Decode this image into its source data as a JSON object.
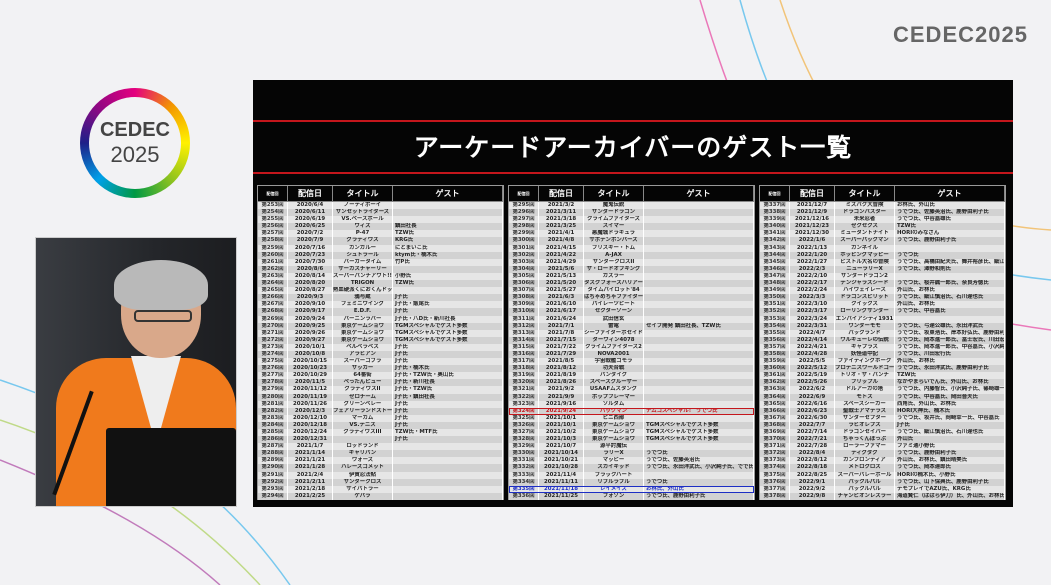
{
  "brand": {
    "logo_top_right": "CEDEC2025",
    "logo_left_line1": "CEDEC",
    "logo_left_line2": "2025"
  },
  "slide": {
    "title": "アーケードアーカイバーのゲスト一覧",
    "columns": [
      "配信回",
      "配信日",
      "タイトル",
      "ゲスト"
    ],
    "highlight_colors": {
      "red": "#c4161c",
      "blue": "#1d2ec4"
    },
    "tables": [
      {
        "rows": [
          [
            "第253回",
            "2020/6/4",
            "ノーティボーイ",
            ""
          ],
          [
            "第254回",
            "2020/6/11",
            "サンセットライダーズ",
            ""
          ],
          [
            "第255回",
            "2020/6/19",
            "VS.ベースボール",
            ""
          ],
          [
            "第256回",
            "2020/6/25",
            "ウィズ",
            "鎮田社長"
          ],
          [
            "第257回",
            "2020/7/2",
            "P-47",
            "TZW氏"
          ],
          [
            "第258回",
            "2020/7/9",
            "グラディウス",
            "KRG氏"
          ],
          [
            "第259回",
            "2020/7/16",
            "カンガルー",
            "にとまいこ氏"
          ],
          [
            "第260回",
            "2020/7/23",
            "シュトラール",
            "ktym氏・楠木氏"
          ],
          [
            "第261回",
            "2020/7/30",
            "バーガータイム",
            "竹P氏"
          ],
          [
            "第262回",
            "2020/8/6",
            "サーカスチャーリー",
            ""
          ],
          [
            "第263回",
            "2020/8/14",
            "スーパーパンチアウト!!",
            "小野氏"
          ],
          [
            "第264回",
            "2020/8/20",
            "TRIGON",
            "TZW氏"
          ],
          [
            "第265回",
            "2020/8/27",
            "熱血硬派くにおくんドッジボール部",
            ""
          ],
          [
            "第266回",
            "2020/9/3",
            "鴉与蔵",
            "J子氏"
          ],
          [
            "第267回",
            "2020/9/10",
            "フェミニウイング",
            "J子氏・飯尾氏"
          ],
          [
            "第268回",
            "2020/9/17",
            "E.D.F.",
            "J子氏"
          ],
          [
            "第269回",
            "2020/9/24",
            "バーニンラバー",
            "J子氏・八D氏・新川社長"
          ],
          [
            "第270回",
            "2020/9/25",
            "東京ゲームショウ",
            "TGMスペシャルでゲスト多数"
          ],
          [
            "第271回",
            "2020/9/26",
            "東京ゲームショウ",
            "TGMスペシャルでゲスト多数"
          ],
          [
            "第272回",
            "2020/9/27",
            "東京ゲームショウ",
            "TGMスペシャルでゲスト多数"
          ],
          [
            "第273回",
            "2020/10/1",
            "ベルベラベス",
            "J子氏"
          ],
          [
            "第274回",
            "2020/10/8",
            "アラビアン",
            "J子氏"
          ],
          [
            "第275回",
            "2020/10/15",
            "スーパーコブラ",
            "J子氏"
          ],
          [
            "第276回",
            "2020/10/23",
            "サッカー",
            "J子氏・楠木氏"
          ],
          [
            "第277回",
            "2020/10/29",
            "64番街",
            "J子氏・TZW氏・奥山氏"
          ],
          [
            "第278回",
            "2020/11/5",
            "ぺったんピュー",
            "J子氏・新川社長"
          ],
          [
            "第279回",
            "2020/11/12",
            "グラディウスII",
            "J子氏・TZW氏"
          ],
          [
            "第280回",
            "2020/11/19",
            "ゼロチーム",
            "J子氏・鎮田社長"
          ],
          [
            "第281回",
            "2020/11/26",
            "グリーンベレー",
            "J子氏"
          ],
          [
            "第282回",
            "2020/12/3",
            "フェアリーランドストーリー",
            "J子氏"
          ],
          [
            "第283回",
            "2020/12/10",
            "マーカム",
            "J子氏"
          ],
          [
            "第284回",
            "2020/12/18",
            "VS.テニス",
            "J子氏"
          ],
          [
            "第285回",
            "2020/12/24",
            "グラディウスIII",
            "TZW氏・MTF氏"
          ],
          [
            "第286回",
            "2020/12/31",
            "",
            "J子氏"
          ],
          [
            "第287回",
            "2021/1/7",
            "ロッドランド",
            ""
          ],
          [
            "第288回",
            "2021/1/14",
            "ギャリバン",
            ""
          ],
          [
            "第289回",
            "2021/1/21",
            "ウォーズ",
            ""
          ],
          [
            "第290回",
            "2021/1/28",
            "ハレーズコメット",
            ""
          ],
          [
            "第291回",
            "2021/2/4",
            "伊賀忍法帖",
            ""
          ],
          [
            "第292回",
            "2021/2/11",
            "サンダークロス",
            ""
          ],
          [
            "第293回",
            "2021/2/18",
            "サイバトラー",
            ""
          ],
          [
            "第294回",
            "2021/2/25",
            "ゲバラ",
            ""
          ]
        ]
      },
      {
        "rows": [
          [
            "第295回",
            "2021/3/2",
            "魔鬼伝説",
            ""
          ],
          [
            "第296回",
            "2021/3/11",
            "サンダードラゴン",
            ""
          ],
          [
            "第297回",
            "2021/3/18",
            "クライムファイターズ",
            ""
          ],
          [
            "第298回",
            "2021/3/25",
            "スイマー",
            ""
          ],
          [
            "第299回",
            "2021/4/1",
            "悪魔城ドラキュラ",
            ""
          ],
          [
            "第300回",
            "2021/4/8",
            "サボテンボンバーズ",
            ""
          ],
          [
            "第301回",
            "2021/4/15",
            "フリスキー・トム",
            ""
          ],
          [
            "第302回",
            "2021/4/22",
            "A-JAX",
            ""
          ],
          [
            "第303回",
            "2021/4/29",
            "サンダークロスII",
            ""
          ],
          [
            "第304回",
            "2021/5/6",
            "ザ・ロードオブキング",
            ""
          ],
          [
            "第305回",
            "2021/5/13",
            "ガズラー",
            ""
          ],
          [
            "第306回",
            "2021/5/20",
            "タスクフォースハリアー",
            ""
          ],
          [
            "第307回",
            "2021/5/27",
            "タイムパイロット'84",
            ""
          ],
          [
            "第308回",
            "2021/6/3",
            "はちゃめちゃファイター",
            ""
          ],
          [
            "第309回",
            "2021/6/10",
            "パイレーツピート",
            ""
          ],
          [
            "第310回",
            "2021/6/17",
            "セクターゾーン",
            ""
          ],
          [
            "第311回",
            "2021/6/24",
            "武田信玄",
            ""
          ],
          [
            "第312回",
            "2021/7/1",
            "雷電",
            "セイブ開発 鎮田社長、TZW氏"
          ],
          [
            "第313回",
            "2021/7/8",
            "シーファイターポセイドン",
            ""
          ],
          [
            "第314回",
            "2021/7/15",
            "ダーウィン4078",
            ""
          ],
          [
            "第315回",
            "2021/7/22",
            "クライムファイターズ2",
            ""
          ],
          [
            "第316回",
            "2021/7/29",
            "NOVA2001",
            ""
          ],
          [
            "第317回",
            "2021/8/5",
            "宇宙戦艦ゴモラ",
            ""
          ],
          [
            "第318回",
            "2021/8/12",
            "功夫合戦",
            ""
          ],
          [
            "第319回",
            "2021/8/19",
            "バンダイク",
            ""
          ],
          [
            "第320回",
            "2021/8/26",
            "スペースクルーザー",
            ""
          ],
          [
            "第321回",
            "2021/9/2",
            "USAAFムスタング",
            ""
          ],
          [
            "第322回",
            "2021/9/9",
            "ポップフレーマー",
            ""
          ],
          [
            "第323回",
            "2021/9/16",
            "ソルダム",
            ""
          ],
          [
            "第324回",
            "2021/9/24",
            "パックマン",
            "ナムコスペシャル！ うでつ氏",
            "red"
          ],
          [
            "第325回",
            "2021/10/1",
            "ピニ西部",
            ""
          ],
          [
            "第326回",
            "2021/10/1",
            "東京ゲームショウ",
            "TGMスペシャルでゲスト多数"
          ],
          [
            "第327回",
            "2021/10/2",
            "東京ゲームショウ",
            "TGMスペシャルでゲスト多数"
          ],
          [
            "第328回",
            "2021/10/3",
            "東京ゲームショウ",
            "TGMスペシャルでゲスト多数"
          ],
          [
            "第329回",
            "2021/10/7",
            "源平討魔伝",
            ""
          ],
          [
            "第330回",
            "2021/10/14",
            "ラリーX",
            "うでつ氏"
          ],
          [
            "第331回",
            "2021/10/21",
            "マッピー",
            "うでつ氏、佐藤英治氏"
          ],
          [
            "第332回",
            "2021/10/28",
            "スカイキッド",
            "うでつ氏、永田洋武氏、小沢純子氏、でで氏"
          ],
          [
            "第333回",
            "2021/11/4",
            "ブラックハート",
            ""
          ],
          [
            "第334回",
            "2021/11/11",
            "リブルラブル",
            "うでつ氏"
          ],
          [
            "第335回",
            "2021/11/18",
            "レイメイズ",
            "お林氏、外山氏",
            "blue"
          ],
          [
            "第336回",
            "2021/11/25",
            "フォゾン",
            "うでつ氏、鹿野由利子氏"
          ]
        ]
      },
      {
        "rows": [
          [
            "第337回",
            "2021/12/7",
            "ミズバク大冒険",
            "お林氏、外山氏"
          ],
          [
            "第338回",
            "2021/12/9",
            "ドラゴンバスター",
            "うでつ氏、佐藤英治氏、鹿野由利子氏"
          ],
          [
            "第339回",
            "2021/12/16",
            "未来忍者",
            "うでつ氏、中谷嘉雄氏"
          ],
          [
            "第340回",
            "2021/12/23",
            "ゼクセクス",
            "TZW氏"
          ],
          [
            "第341回",
            "2021/12/30",
            "ミュータントナイト",
            "HORIのみなさん"
          ],
          [
            "第342回",
            "2022/1/6",
            "スーパーパックマン",
            "うでつ氏、鹿野由利子氏"
          ],
          [
            "第343回",
            "2022/1/13",
            "ガンネイル",
            ""
          ],
          [
            "第344回",
            "2022/1/20",
            "ホッピングマッピー",
            "うでつ氏"
          ],
          [
            "第345回",
            "2022/1/27",
            "ピストル大名の冒険",
            "うでつ氏、高橋由紀夫氏、舞井裕彦氏、細江慎治氏、高野博氏"
          ],
          [
            "第346回",
            "2022/2/3",
            "ニューラリーX",
            "うでつ氏、澤野和則氏"
          ],
          [
            "第347回",
            "2022/2/10",
            "サンダードラゴン2",
            ""
          ],
          [
            "第348回",
            "2022/2/17",
            "デンジャラスシード",
            "うでつ氏、桜井誠一郎氏、奈良芳徳氏"
          ],
          [
            "第349回",
            "2022/2/24",
            "ハイウェイレース",
            "外山氏、お林氏"
          ],
          [
            "第350回",
            "2022/3/3",
            "ドラゴンスピリット",
            "うでつ氏、細江慎治氏、石川達也氏"
          ],
          [
            "第351回",
            "2022/3/10",
            "クイックス",
            "外山氏、お林氏"
          ],
          [
            "第352回",
            "2022/3/17",
            "ローリングサンダー",
            "うでつ氏、中谷嘉氏"
          ],
          [
            "第353回",
            "2022/3/24",
            "エンパイアシティ1931",
            ""
          ],
          [
            "第354回",
            "2022/3/31",
            "ワンダーモモ",
            "うでつ氏、弓達公雄氏、永田洋武氏"
          ],
          [
            "第355回",
            "2022/4/7",
            "パックランド",
            "うでつ氏、坂東浩氏、岸本好弘氏、鹿野由利子氏"
          ],
          [
            "第356回",
            "2022/4/14",
            "ワルキューレの伝説",
            "うでつ氏、岡本進一郎氏、冨士宏氏、川田宏行氏"
          ],
          [
            "第357回",
            "2022/4/21",
            "ギャプラス",
            "うでつ氏、岡本進一郎氏、中谷嘉氏、小沢純子氏"
          ],
          [
            "第358回",
            "2022/4/28",
            "妖怪道中記",
            "うでつ氏、川田宏行氏"
          ],
          [
            "第359回",
            "2022/5/5",
            "ファイティングホーク",
            "外山氏、お林氏"
          ],
          [
            "第360回",
            "2022/5/12",
            "プロテニスワールドコート",
            "うでつ氏、永田洋武氏、鹿野由利子氏"
          ],
          [
            "第361回",
            "2022/5/19",
            "トリオ・ザ・パンチ",
            "TZW氏"
          ],
          [
            "第362回",
            "2022/5/26",
            "フリップル",
            "なかやまらいでん氏、外山氏、お林氏"
          ],
          [
            "第363回",
            "2022/6/2",
            "ドルアーガの塔",
            "うでつ氏、内藤智氏、小沢純子氏、篠崎雄一郎氏"
          ],
          [
            "第364回",
            "2022/6/9",
            "モトス",
            "うでつ氏、中谷嘉氏、岡田晋夫氏"
          ],
          [
            "第365回",
            "2022/6/16",
            "スペースシーカー",
            "西角氏、外山氏、お林氏"
          ],
          [
            "第366回",
            "2022/6/23",
            "聖戦士アマテラス",
            "HORI大神氏、楠木氏"
          ],
          [
            "第367回",
            "2022/6/30",
            "サンダーセプター",
            "うでつ氏、坂井氏、岡崎幸一氏、中谷嘉氏"
          ],
          [
            "第368回",
            "2022/7/7",
            "ラビオレプス",
            "J子氏"
          ],
          [
            "第369回",
            "2022/7/14",
            "ドラゴンセイバー",
            "うでつ氏、細江慎治氏、石川達也氏"
          ],
          [
            "第370回",
            "2022/7/21",
            "ちゃっくんぽっぷ",
            "外山氏"
          ],
          [
            "第371回",
            "2022/7/28",
            "ローラーファマー",
            "ファミ通小野氏"
          ],
          [
            "第372回",
            "2022/8/4",
            "ディグダグ",
            "うでつ氏、鹿野由利子氏"
          ],
          [
            "第373回",
            "2022/8/12",
            "ガンフロンティア",
            "外山氏、お林氏、鎮田晴美氏"
          ],
          [
            "第374回",
            "2022/8/18",
            "メトロクロス",
            "うでつ氏、岡本達郎氏"
          ],
          [
            "第375回",
            "2022/8/25",
            "スーパーバレーボール",
            "HORIの楠木氏、小野氏"
          ],
          [
            "第376回",
            "2022/9/1",
            "パックルパル",
            "うでつ氏、山下保典氏、鹿野由利子氏"
          ],
          [
            "第377回",
            "2022/9/2",
            "パックルパル",
            "デモプレイでAZU氏、KRG氏"
          ],
          [
            "第378回",
            "2022/9/8",
            "チャンピオンレスラー",
            "海道賢仁（ばばら伊刀）氏、外山氏、お林氏"
          ]
        ]
      }
    ]
  }
}
